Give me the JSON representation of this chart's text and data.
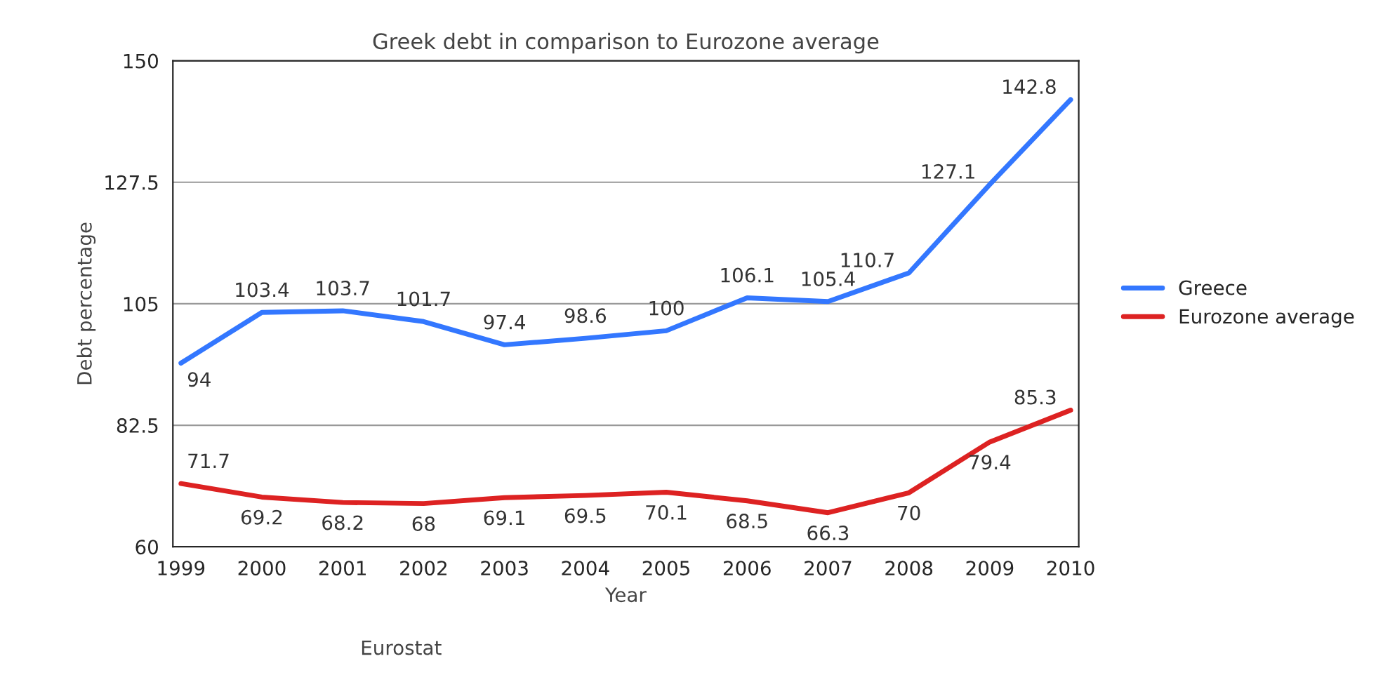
{
  "chart_data": {
    "type": "line",
    "title": "Greek debt in comparison to Eurozone average",
    "xlabel": "Year",
    "ylabel": "Debt percentage",
    "categories": [
      "1999",
      "2000",
      "2001",
      "2002",
      "2003",
      "2004",
      "2005",
      "2006",
      "2007",
      "2008",
      "2009",
      "2010"
    ],
    "series": [
      {
        "name": "Greece",
        "color": "#3377ff",
        "values": [
          94,
          103.4,
          103.7,
          101.7,
          97.4,
          98.6,
          100,
          106.1,
          105.4,
          110.7,
          127.1,
          142.8
        ]
      },
      {
        "name": "Eurozone average",
        "color": "#dd2222",
        "values": [
          71.7,
          69.2,
          68.2,
          68,
          69.1,
          69.5,
          70.1,
          68.5,
          66.3,
          70,
          79.4,
          85.3
        ]
      }
    ],
    "ylim": [
      60,
      150
    ],
    "yticks": [
      60,
      82.5,
      105,
      127.5,
      150
    ],
    "grid": "y",
    "legend": "right",
    "data_labels": true,
    "line_style": "solid",
    "annotations": [
      "Eurostat"
    ]
  }
}
